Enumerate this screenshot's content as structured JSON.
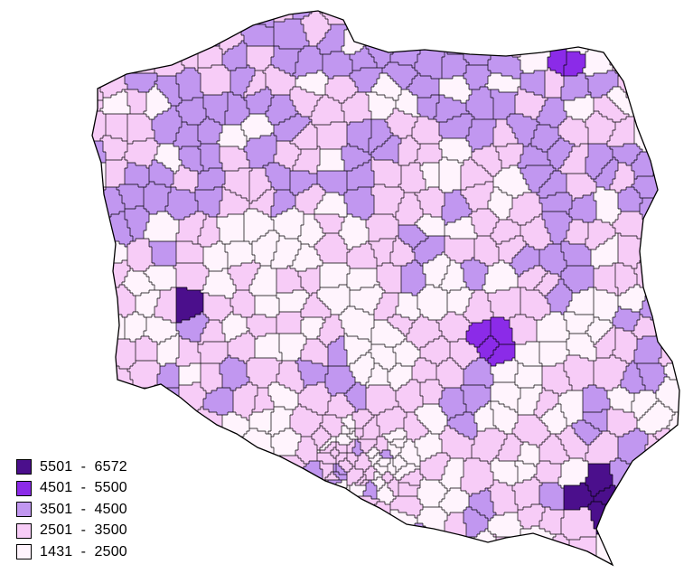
{
  "legend": {
    "classes": [
      {
        "label": "5501  -  6572",
        "color": "#4b0f8c"
      },
      {
        "label": "4501  -  5500",
        "color": "#8b2be8"
      },
      {
        "label": "3501  -  4500",
        "color": "#c197f0"
      },
      {
        "label": "2501  -  3500",
        "color": "#f7ccf7"
      },
      {
        "label": "1431  -  2500",
        "color": "#fff4fd"
      }
    ]
  },
  "colors": {
    "border": "#000000",
    "background": "#ffffff"
  }
}
